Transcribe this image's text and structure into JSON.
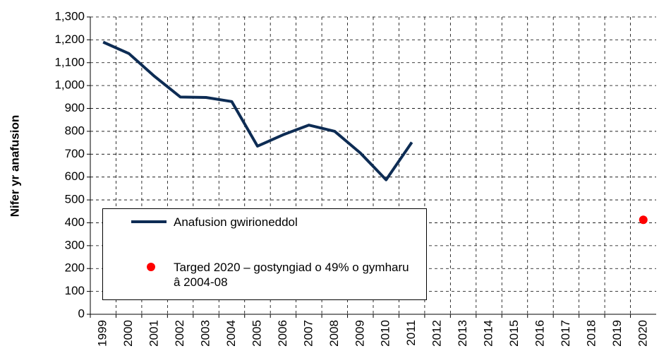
{
  "chart_data": {
    "type": "line",
    "ylabel": "Nifer yr anafusion",
    "categories": [
      "1999",
      "2000",
      "2001",
      "2002",
      "2003",
      "2004",
      "2005",
      "2006",
      "2007",
      "2008",
      "2009",
      "2010",
      "2011",
      "2012",
      "2013",
      "2014",
      "2015",
      "2016",
      "2017",
      "2018",
      "2019",
      "2020"
    ],
    "series": [
      {
        "name": "Anafusion gwirioneddol",
        "color": "#0d2c54",
        "values": [
          1190,
          1140,
          1040,
          950,
          948,
          930,
          735,
          785,
          827,
          800,
          705,
          588,
          752,
          null,
          null,
          null,
          null,
          null,
          null,
          null,
          null,
          null
        ]
      },
      {
        "name": "Targed 2020 – gostyngiad o 49% o gymharu â 2004-08",
        "color": "#ff0000",
        "values": [
          null,
          null,
          null,
          null,
          null,
          null,
          null,
          null,
          null,
          null,
          null,
          null,
          null,
          null,
          null,
          null,
          null,
          null,
          null,
          null,
          null,
          413
        ]
      }
    ],
    "ylim": [
      0,
      1300
    ],
    "yticks": [
      0,
      100,
      200,
      300,
      400,
      500,
      600,
      700,
      800,
      900,
      {
        "value": 1000,
        "label": "1,000"
      },
      {
        "value": 1100,
        "label": "1,100"
      },
      {
        "value": 1200,
        "label": "1,200"
      },
      {
        "value": 1300,
        "label": "1,300"
      }
    ],
    "grid": true
  }
}
